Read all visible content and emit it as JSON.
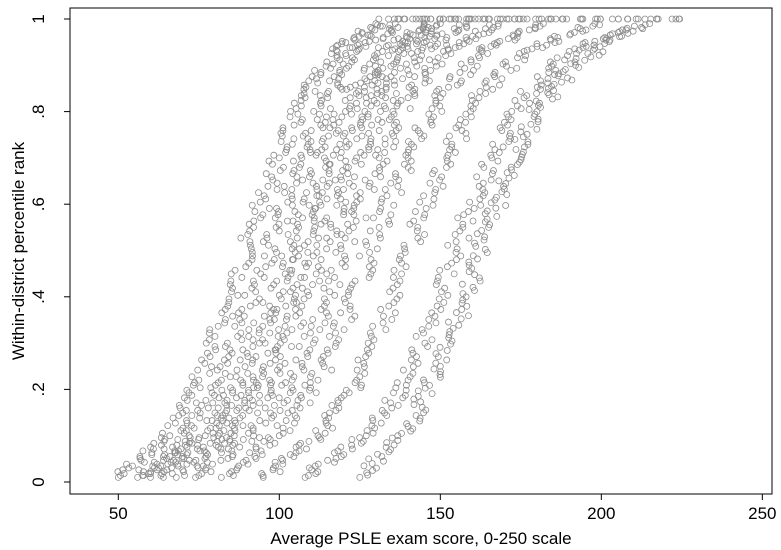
{
  "chart_data": {
    "type": "scatter",
    "title": "",
    "xlabel": "Average PSLE exam score, 0-250 scale",
    "ylabel": "Within-district percentile rank",
    "xlim": [
      35,
      253
    ],
    "ylim": [
      0,
      1
    ],
    "x_ticks": [
      50,
      100,
      150,
      200,
      250
    ],
    "x_tick_labels": [
      "50",
      "100",
      "150",
      "200",
      "250"
    ],
    "y_ticks": [
      0,
      0.2,
      0.4,
      0.6,
      0.8,
      1
    ],
    "y_tick_labels": [
      "0",
      ".2",
      ".4",
      ".6",
      ".8",
      "1"
    ],
    "grid": false,
    "legend": "none",
    "marker": "hollow-circle",
    "marker_color": "#8c8c8c",
    "series": [
      {
        "x": [
          50,
          66,
          75,
          84,
          92,
          100,
          108,
          118,
          130
        ],
        "y": [
          0.01,
          0.1,
          0.22,
          0.38,
          0.55,
          0.7,
          0.83,
          0.93,
          0.99
        ]
      },
      {
        "x": [
          56,
          72,
          82,
          91,
          99,
          107,
          115,
          124,
          136
        ],
        "y": [
          0.01,
          0.1,
          0.22,
          0.38,
          0.55,
          0.7,
          0.83,
          0.93,
          0.99
        ]
      },
      {
        "x": [
          60,
          77,
          88,
          97,
          106,
          114,
          122,
          132,
          145
        ],
        "y": [
          0.01,
          0.1,
          0.22,
          0.38,
          0.55,
          0.7,
          0.83,
          0.93,
          0.99
        ]
      },
      {
        "x": [
          64,
          81,
          92,
          102,
          111,
          119,
          127,
          137,
          150
        ],
        "y": [
          0.01,
          0.1,
          0.22,
          0.38,
          0.55,
          0.7,
          0.83,
          0.93,
          0.99
        ]
      },
      {
        "x": [
          68,
          86,
          97,
          107,
          116,
          124,
          133,
          143,
          158
        ],
        "y": [
          0.01,
          0.1,
          0.22,
          0.38,
          0.55,
          0.7,
          0.83,
          0.93,
          0.99
        ]
      },
      {
        "x": [
          74,
          92,
          104,
          114,
          123,
          131,
          140,
          151,
          168
        ],
        "y": [
          0.01,
          0.1,
          0.22,
          0.38,
          0.55,
          0.7,
          0.83,
          0.93,
          0.99
        ]
      },
      {
        "x": [
          82,
          100,
          112,
          122,
          131,
          140,
          150,
          163,
          182
        ],
        "y": [
          0.01,
          0.1,
          0.22,
          0.38,
          0.55,
          0.7,
          0.83,
          0.93,
          0.99
        ]
      },
      {
        "x": [
          95,
          112,
          124,
          134,
          143,
          152,
          162,
          176,
          198
        ],
        "y": [
          0.01,
          0.1,
          0.22,
          0.38,
          0.55,
          0.7,
          0.83,
          0.93,
          0.99
        ]
      },
      {
        "x": [
          108,
          127,
          140,
          149,
          157,
          166,
          176,
          190,
          215
        ],
        "y": [
          0.01,
          0.1,
          0.22,
          0.38,
          0.55,
          0.7,
          0.83,
          0.93,
          0.99
        ]
      },
      {
        "x": [
          125,
          140,
          150,
          158,
          165,
          172,
          180,
          192,
          208
        ],
        "y": [
          0.01,
          0.12,
          0.25,
          0.4,
          0.55,
          0.68,
          0.8,
          0.9,
          0.98
        ]
      }
    ]
  }
}
